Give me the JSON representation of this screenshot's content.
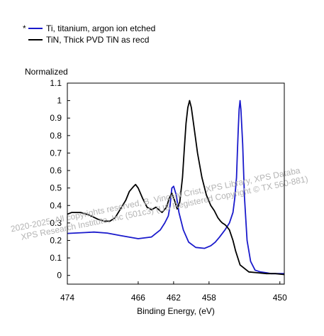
{
  "chart_data": {
    "type": "line",
    "xlabel": "Binding Energy, (eV)",
    "ylabel": "Normalized",
    "xlim": [
      474,
      449.5
    ],
    "x_reversed": true,
    "ylim": [
      -0.05,
      1.1
    ],
    "xticks": [
      "474",
      "466",
      "462",
      "458",
      "450"
    ],
    "xtick_values": [
      474,
      466,
      462,
      458,
      450
    ],
    "yticks": [
      "0",
      "0.1",
      "0.2",
      "0.3",
      "0.4",
      "0.5",
      "0.6",
      "0.7",
      "0.8",
      "0.9",
      "1",
      "1.1"
    ],
    "ytick_values": [
      0,
      0.1,
      0.2,
      0.3,
      0.4,
      0.5,
      0.6,
      0.7,
      0.8,
      0.9,
      1.0,
      1.1
    ],
    "grid": false,
    "legend_position": "top-left, above plot",
    "series": [
      {
        "name": "Ti, titanium, argon ion etched",
        "marker": "*",
        "color": "#1a1acc",
        "x": [
          474,
          472,
          471,
          469.5,
          468,
          466,
          464.5,
          463.5,
          463,
          462.6,
          462.4,
          462.3,
          462.2,
          462.0,
          461.7,
          461.4,
          460.9,
          460.3,
          459.5,
          458.5,
          457.8,
          457.3,
          456.8,
          456.2,
          455.7,
          455.3,
          455.1,
          454.9,
          454.8,
          454.7,
          454.6,
          454.5,
          454.4,
          454.2,
          454.0,
          453.7,
          453.3,
          452.8,
          452.2,
          451.5,
          451.0,
          450.5,
          449.5
        ],
        "y": [
          0.24,
          0.245,
          0.248,
          0.242,
          0.228,
          0.21,
          0.22,
          0.26,
          0.3,
          0.34,
          0.4,
          0.45,
          0.5,
          0.51,
          0.46,
          0.36,
          0.26,
          0.19,
          0.16,
          0.155,
          0.17,
          0.19,
          0.22,
          0.26,
          0.3,
          0.36,
          0.44,
          0.56,
          0.7,
          0.84,
          0.95,
          1.0,
          0.95,
          0.75,
          0.45,
          0.2,
          0.08,
          0.03,
          0.02,
          0.015,
          0.01,
          0.01,
          0.01
        ]
      },
      {
        "name": "TiN, Thick PVD TiN as recd",
        "marker": "",
        "color": "#000000",
        "x": [
          474,
          473.5,
          472.5,
          471.5,
          470.5,
          469.8,
          469.2,
          468.6,
          468.0,
          467.4,
          467.0,
          466.5,
          466.3,
          466.0,
          465.5,
          465.0,
          464.5,
          464.0,
          463.3,
          462.8,
          462.5,
          462.2,
          461.9,
          461.6,
          461.3,
          461.0,
          460.8,
          460.6,
          460.4,
          460.2,
          460.0,
          459.7,
          459.3,
          458.8,
          458.3,
          457.8,
          457.4,
          457.0,
          456.7,
          456.5,
          456.2,
          456.0,
          455.7,
          455.3,
          455.0,
          454.5,
          453.5,
          452.5,
          451.5,
          450.5,
          449.5
        ],
        "y": [
          0.35,
          0.36,
          0.36,
          0.345,
          0.32,
          0.31,
          0.31,
          0.33,
          0.38,
          0.43,
          0.48,
          0.51,
          0.52,
          0.5,
          0.44,
          0.39,
          0.375,
          0.39,
          0.36,
          0.39,
          0.44,
          0.47,
          0.43,
          0.38,
          0.42,
          0.56,
          0.72,
          0.87,
          0.96,
          1.0,
          0.96,
          0.85,
          0.7,
          0.56,
          0.46,
          0.4,
          0.37,
          0.33,
          0.31,
          0.3,
          0.29,
          0.28,
          0.26,
          0.2,
          0.14,
          0.06,
          0.02,
          0.015,
          0.01,
          0.01,
          0.005
        ]
      }
    ]
  },
  "watermark": {
    "line1": "2020-2025, All copyrights reserved,   B. Vincent Crist,  XPS Library, XPS Databa",
    "line2": "XPS Research Institute, Inc (501c3)   (US Registered Copyright © TX 560-881)"
  }
}
